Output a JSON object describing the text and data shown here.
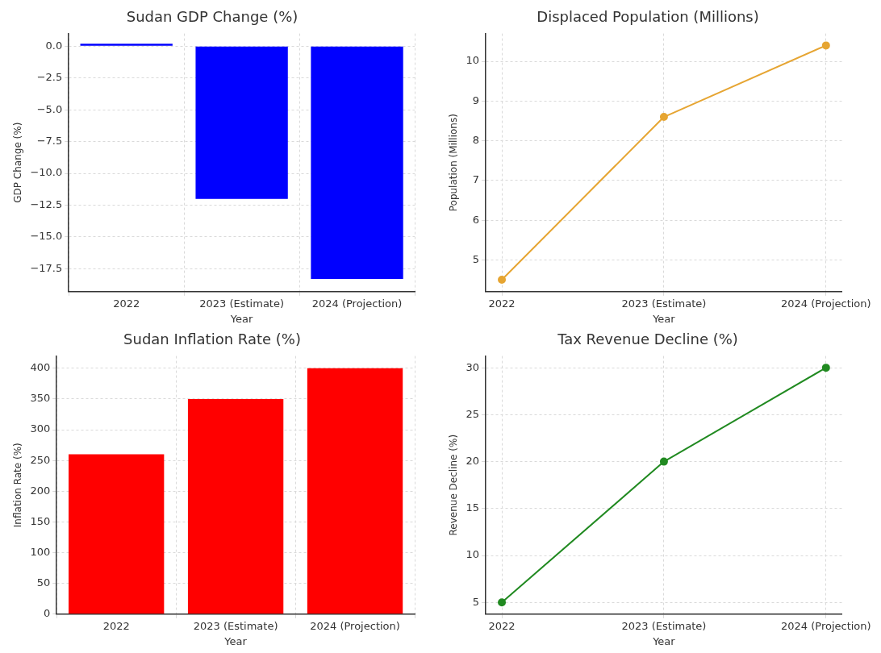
{
  "chart_data": [
    {
      "type": "bar",
      "title": "Sudan GDP Change (%)",
      "xlabel": "Year",
      "ylabel": "GDP Change (%)",
      "categories": [
        "2022",
        "2023 (Estimate)",
        "2024 (Projection)"
      ],
      "values": [
        0.2,
        -12.0,
        -18.3
      ],
      "color": "#0000ff",
      "ylim": [
        -19.3,
        1.0
      ],
      "yticks": [
        {
          "value": 0,
          "label": "0.0"
        },
        {
          "value": -2.5,
          "label": "−2.5"
        },
        {
          "value": -5,
          "label": "−5.0"
        },
        {
          "value": -7.5,
          "label": "−7.5"
        },
        {
          "value": -10,
          "label": "−10.0"
        },
        {
          "value": -12.5,
          "label": "−12.5"
        },
        {
          "value": -15,
          "label": "−15.0"
        },
        {
          "value": -17.5,
          "label": "−17.5"
        }
      ],
      "grid": true
    },
    {
      "type": "line",
      "title": "Displaced Population (Millions)",
      "xlabel": "Year",
      "ylabel": "Population (Millions)",
      "categories": [
        "2022",
        "2023 (Estimate)",
        "2024 (Projection)"
      ],
      "values": [
        4.5,
        8.6,
        10.4
      ],
      "color": "#e6a532",
      "ylim": [
        4.2,
        10.7
      ],
      "yticks": [
        5,
        6,
        7,
        8,
        9,
        10
      ],
      "grid": true,
      "marker": "circle"
    },
    {
      "type": "bar",
      "title": "Sudan Inflation Rate (%)",
      "xlabel": "Year",
      "ylabel": "Inflation Rate (%)",
      "categories": [
        "2022",
        "2023 (Estimate)",
        "2024 (Projection)"
      ],
      "values": [
        260,
        350,
        400
      ],
      "color": "#ff0000",
      "ylim": [
        0,
        420
      ],
      "yticks": [
        0,
        50,
        100,
        150,
        200,
        250,
        300,
        350,
        400
      ],
      "grid": true
    },
    {
      "type": "line",
      "title": "Tax Revenue Decline (%)",
      "xlabel": "Year",
      "ylabel": "Revenue Decline (%)",
      "categories": [
        "2022",
        "2023 (Estimate)",
        "2024 (Projection)"
      ],
      "values": [
        5,
        20,
        30
      ],
      "color": "#218a21",
      "ylim": [
        3.75,
        31.25
      ],
      "yticks": [
        5,
        10,
        15,
        20,
        25,
        30
      ],
      "grid": true,
      "marker": "circle"
    }
  ]
}
